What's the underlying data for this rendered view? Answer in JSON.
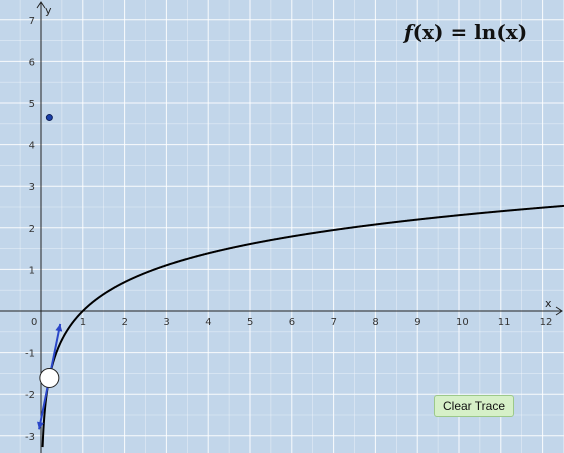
{
  "formula": {
    "prefix": "f",
    "arg": "(x)",
    "equals": "=",
    "fn": "ln",
    "fn_arg": "(x)"
  },
  "buttons": {
    "clear_trace": "Clear Trace"
  },
  "axes": {
    "x_label": "x",
    "y_label": "y"
  },
  "colors": {
    "background": "#c2d6ea",
    "grid": "#ffffff",
    "curve": "#000000",
    "tangent": "#2a46c8",
    "point": "#1a3fa8"
  },
  "chart_data": {
    "type": "line",
    "function": "ln(x)",
    "xlim": [
      -0.9,
      12.5
    ],
    "ylim": [
      -3.4,
      7.4
    ],
    "x_ticks": [
      "0",
      "1",
      "2",
      "3",
      "4",
      "5",
      "6",
      "7",
      "8",
      "9",
      "10",
      "11",
      "12"
    ],
    "y_ticks": [
      "-3",
      "-2",
      "-1",
      "1",
      "2",
      "3",
      "4",
      "5",
      "6",
      "7"
    ],
    "grid": true,
    "marked_point": {
      "x": 0.2,
      "y": 4.65
    },
    "trace_point": {
      "x": 0.2,
      "y": -1.61
    },
    "tangent_slope": 5
  }
}
